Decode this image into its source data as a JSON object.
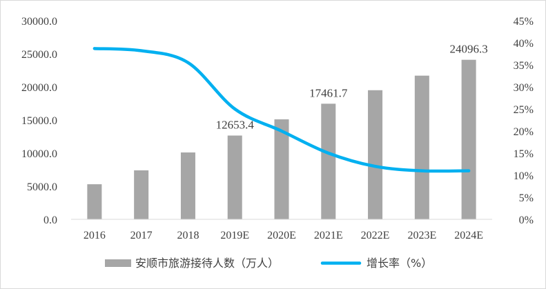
{
  "chart_data": {
    "type": "bar",
    "categories": [
      "2016",
      "2017",
      "2018",
      "2019E",
      "2020E",
      "2021E",
      "2022E",
      "2023E",
      "2024E"
    ],
    "series": [
      {
        "name": "安顺市旅游接待人数（万人）",
        "type": "bar",
        "axis": "left",
        "color": "#a6a6a6",
        "values": [
          5300.0,
          7400.0,
          10100.0,
          12653.4,
          15100.0,
          17461.7,
          19500.0,
          21700.0,
          24096.3
        ]
      },
      {
        "name": "增长率（%）",
        "type": "line",
        "axis": "right",
        "color": "#00b0f0",
        "values": [
          38.7,
          38.2,
          35.5,
          25.0,
          20.0,
          15.0,
          12.0,
          11.0,
          11.0
        ]
      }
    ],
    "data_labels": [
      {
        "index": 3,
        "text": "12653.4"
      },
      {
        "index": 5,
        "text": "17461.7"
      },
      {
        "index": 8,
        "text": "24096.3"
      }
    ],
    "y_left": {
      "min": 0,
      "max": 30000,
      "ticks": [
        "0.0",
        "5000.0",
        "10000.0",
        "15000.0",
        "20000.0",
        "25000.0",
        "30000.0"
      ]
    },
    "y_right": {
      "min": 0,
      "max": 45,
      "ticks": [
        "0%",
        "5%",
        "10%",
        "15%",
        "20%",
        "25%",
        "30%",
        "35%",
        "40%",
        "45%"
      ]
    },
    "title": "",
    "xlabel": "",
    "ylabel": "",
    "grid": false,
    "legend": "bottom"
  }
}
